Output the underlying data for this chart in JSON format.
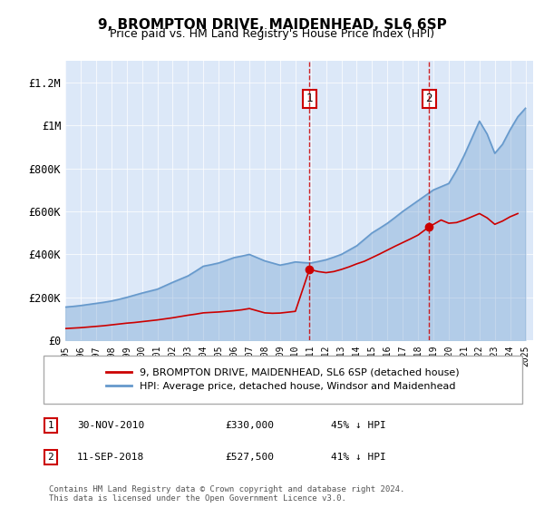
{
  "title": "9, BROMPTON DRIVE, MAIDENHEAD, SL6 6SP",
  "subtitle": "Price paid vs. HM Land Registry's House Price Index (HPI)",
  "plot_bg_color": "#dce8f8",
  "ylabel_ticks": [
    "£0",
    "£200K",
    "£400K",
    "£600K",
    "£800K",
    "£1M",
    "£1.2M"
  ],
  "ytick_vals": [
    0,
    200000,
    400000,
    600000,
    800000,
    1000000,
    1200000
  ],
  "ylim": [
    0,
    1300000
  ],
  "xlim_start": 1995,
  "xlim_end": 2025.5,
  "sale1_x": 2010.916,
  "sale1_y": 330000,
  "sale2_x": 2018.705,
  "sale2_y": 527500,
  "legend_label_red": "9, BROMPTON DRIVE, MAIDENHEAD, SL6 6SP (detached house)",
  "legend_label_blue": "HPI: Average price, detached house, Windsor and Maidenhead",
  "annotation1_label": "1",
  "annotation1_date": "30-NOV-2010",
  "annotation1_price": "£330,000",
  "annotation1_pct": "45% ↓ HPI",
  "annotation2_label": "2",
  "annotation2_date": "11-SEP-2018",
  "annotation2_price": "£527,500",
  "annotation2_pct": "41% ↓ HPI",
  "footer": "Contains HM Land Registry data © Crown copyright and database right 2024.\nThis data is licensed under the Open Government Licence v3.0.",
  "hpi_color": "#6699cc",
  "price_color": "#cc0000",
  "hpi_x": [
    1995,
    1995.5,
    1996,
    1996.5,
    1997,
    1997.5,
    1998,
    1998.5,
    1999,
    1999.5,
    2000,
    2000.5,
    2001,
    2001.5,
    2002,
    2002.5,
    2003,
    2003.5,
    2004,
    2004.5,
    2005,
    2005.5,
    2006,
    2006.5,
    2007,
    2007.5,
    2008,
    2008.5,
    2009,
    2009.5,
    2010,
    2010.5,
    2011,
    2011.5,
    2012,
    2012.5,
    2013,
    2013.5,
    2014,
    2014.5,
    2015,
    2015.5,
    2016,
    2016.5,
    2017,
    2017.5,
    2018,
    2018.5,
    2019,
    2019.5,
    2020,
    2020.5,
    2021,
    2021.5,
    2022,
    2022.5,
    2023,
    2023.5,
    2024,
    2024.5,
    2025
  ],
  "hpi_y": [
    155000,
    158000,
    162000,
    167000,
    172000,
    177000,
    183000,
    191000,
    200000,
    210000,
    220000,
    229000,
    238000,
    254000,
    270000,
    285000,
    300000,
    322000,
    345000,
    352000,
    360000,
    372000,
    385000,
    392000,
    400000,
    385000,
    370000,
    360000,
    350000,
    357000,
    365000,
    362000,
    360000,
    367000,
    375000,
    387000,
    400000,
    420000,
    440000,
    470000,
    500000,
    522000,
    545000,
    572000,
    600000,
    625000,
    650000,
    675000,
    700000,
    715000,
    730000,
    790000,
    860000,
    940000,
    1020000,
    960000,
    870000,
    912000,
    980000,
    1040000,
    1080000
  ],
  "price_x": [
    1995,
    1995.5,
    1996,
    1996.5,
    1997,
    1997.5,
    1998,
    1998.5,
    1999,
    1999.5,
    2000,
    2000.5,
    2001,
    2001.5,
    2002,
    2002.5,
    2003,
    2003.5,
    2004,
    2004.5,
    2005,
    2005.5,
    2006,
    2006.5,
    2007,
    2007.5,
    2008,
    2008.5,
    2009,
    2009.5,
    2010,
    2010.916,
    2011.5,
    2012,
    2012.5,
    2013,
    2013.5,
    2014,
    2014.5,
    2015,
    2015.5,
    2016,
    2016.5,
    2017,
    2017.5,
    2018,
    2018.705,
    2019.5,
    2020,
    2020.5,
    2021,
    2021.5,
    2022,
    2022.5,
    2023,
    2023.5,
    2024,
    2024.5
  ],
  "price_y": [
    55000,
    57000,
    59000,
    62000,
    65000,
    68000,
    72000,
    76000,
    80000,
    83000,
    87000,
    91000,
    95000,
    100000,
    105000,
    111000,
    117000,
    122000,
    128000,
    130000,
    132000,
    135000,
    138000,
    142000,
    148000,
    138000,
    128000,
    126000,
    127000,
    131000,
    135000,
    330000,
    320000,
    315000,
    320000,
    330000,
    342000,
    356000,
    368000,
    385000,
    402000,
    420000,
    438000,
    455000,
    472000,
    490000,
    527500,
    560000,
    545000,
    548000,
    560000,
    575000,
    590000,
    570000,
    540000,
    555000,
    575000,
    590000
  ]
}
